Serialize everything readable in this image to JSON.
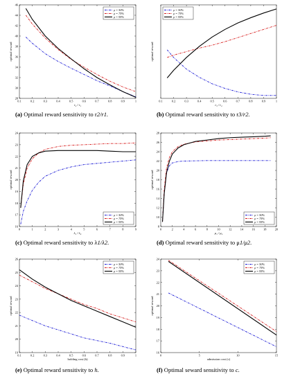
{
  "chart_data": [
    {
      "type": "line",
      "label": "(a)",
      "caption": "Optimal reward sensitivity to r",
      "caption_math": "2/r1.",
      "xlabel": "r₂ / r₁",
      "ylabel": "optimal reward",
      "xlim": [
        0.1,
        1
      ],
      "ylim": [
        28,
        46
      ],
      "xticks": [
        0.1,
        0.2,
        0.3,
        0.4,
        0.5,
        0.6,
        0.7,
        0.8,
        0.9,
        1
      ],
      "yticks": [
        28,
        30,
        32,
        34,
        36,
        38,
        40,
        42,
        44,
        46
      ],
      "xticklabels": [
        "0.1",
        "0.2",
        "0.3",
        "0.4",
        "0.5",
        "0.6",
        "0.7",
        "0.8",
        "0.9",
        "1"
      ],
      "yticklabels": [
        "28",
        "30",
        "32",
        "34",
        "36",
        "38",
        "40",
        "42",
        "44",
        "46"
      ],
      "legend_loc": "top-right",
      "x": [
        0.15,
        0.2,
        0.3,
        0.4,
        0.5,
        0.6,
        0.7,
        0.8,
        0.9,
        1.0
      ],
      "series": [
        {
          "name": "ρ = 50%",
          "color": "#1f1fd6",
          "style": "dashdot",
          "values": [
            39.8,
            38.6,
            36.6,
            35.1,
            33.8,
            32.6,
            31.4,
            30.4,
            29.3,
            28.3
          ]
        },
        {
          "name": "ρ = 75%",
          "color": "#d81f1f",
          "style": "dashdot",
          "values": [
            44.0,
            42.3,
            39.6,
            37.4,
            35.5,
            34.0,
            32.6,
            31.3,
            30.2,
            29.3
          ]
        },
        {
          "name": "ρ = 95%",
          "color": "#000000",
          "style": "solid",
          "values": [
            45.3,
            43.2,
            40.0,
            37.6,
            35.6,
            33.7,
            32.0,
            30.6,
            29.3,
            28.2
          ]
        }
      ]
    },
    {
      "type": "line",
      "label": "(b)",
      "caption": "Optimal reward sensitivity to r",
      "caption_math": "3/r2.",
      "xlabel": "r₃ / r₂",
      "ylabel": "optimal reward",
      "xlim": [
        0.1,
        1
      ],
      "ylim": [
        32,
        48
      ],
      "xticks": [
        0.1,
        0.2,
        0.3,
        0.4,
        0.5,
        0.6,
        0.7,
        0.8,
        0.9,
        1
      ],
      "yticks": [],
      "xticklabels": [
        "0.1",
        "0.2",
        "0.3",
        "0.4",
        "0.5",
        "0.6",
        "0.7",
        "0.8",
        "0.9",
        "1"
      ],
      "yticklabels": [],
      "legend_loc": "top-left",
      "x": [
        0.15,
        0.2,
        0.3,
        0.4,
        0.5,
        0.6,
        0.7,
        0.8,
        0.9,
        1.0
      ],
      "series": [
        {
          "name": "ρ = 50%",
          "color": "#1f1fd6",
          "style": "dashdot",
          "values": [
            40.3,
            39.0,
            37.0,
            35.6,
            34.5,
            33.7,
            33.1,
            32.7,
            32.5,
            32.5
          ]
        },
        {
          "name": "ρ = 75%",
          "color": "#d81f1f",
          "style": "dashdot",
          "values": [
            39.0,
            39.4,
            40.0,
            40.6,
            41.1,
            41.7,
            42.4,
            43.1,
            43.8,
            44.5
          ]
        },
        {
          "name": "ρ = 95%",
          "color": "#000000",
          "style": "solid",
          "values": [
            35.5,
            36.8,
            39.0,
            40.9,
            42.5,
            43.8,
            44.9,
            45.8,
            46.6,
            47.3
          ]
        }
      ]
    },
    {
      "type": "line",
      "label": "(c)",
      "caption": "Optimal reward sensitivity to λ",
      "caption_math": "1/λ2.",
      "xlabel": "λ₁ / λ₂",
      "ylabel": "optimal reward",
      "xlim": [
        0,
        9
      ],
      "ylim": [
        16,
        24
      ],
      "xticks": [
        0,
        1,
        2,
        3,
        4,
        5,
        6,
        7,
        8,
        9
      ],
      "yticks": [
        16,
        17,
        18,
        19,
        20,
        21,
        22,
        23,
        24
      ],
      "xticklabels": [
        "0",
        "1",
        "2",
        "3",
        "4",
        "5",
        "6",
        "7",
        "8",
        "9"
      ],
      "yticklabels": [
        "16",
        "17",
        "18",
        "19",
        "20",
        "21",
        "22",
        "23",
        "24"
      ],
      "legend_loc": "bottom-right",
      "x": [
        0.1,
        0.3,
        0.6,
        1.0,
        1.5,
        2.0,
        3.0,
        4.0,
        5.0,
        6.0,
        7.0,
        8.0,
        9.0
      ],
      "series": [
        {
          "name": "ρ = 50%",
          "color": "#1f1fd6",
          "style": "dashdot",
          "values": [
            16.2,
            17.3,
            18.2,
            19.1,
            19.8,
            20.3,
            20.8,
            21.1,
            21.3,
            21.4,
            21.5,
            21.6,
            21.7
          ]
        },
        {
          "name": "ρ = 75%",
          "color": "#d81f1f",
          "style": "dashdot",
          "values": [
            17.6,
            19.6,
            21.0,
            21.8,
            22.3,
            22.6,
            22.85,
            22.95,
            23.0,
            23.05,
            23.1,
            23.1,
            23.15
          ]
        },
        {
          "name": "ρ = 95%",
          "color": "#000000",
          "style": "solid",
          "values": [
            17.6,
            19.9,
            21.3,
            22.0,
            22.3,
            22.45,
            22.5,
            22.5,
            22.5,
            22.5,
            22.45,
            22.4,
            22.4
          ]
        }
      ]
    },
    {
      "type": "line",
      "label": "(d)",
      "caption": "Optimal reward sensitivity to μ",
      "caption_math": "1/μ2.",
      "xlabel": "μ₁ / μ₂",
      "ylabel": "optimal reward",
      "xlim": [
        0,
        20
      ],
      "ylim": [
        8,
        28
      ],
      "xticks": [
        0,
        2,
        4,
        6,
        8,
        10,
        12,
        14,
        16,
        18,
        20
      ],
      "yticks": [
        8,
        10,
        12,
        14,
        16,
        18,
        20,
        22,
        24,
        26,
        28
      ],
      "xticklabels": [
        "0",
        "2",
        "4",
        "6",
        "8",
        "10",
        "12",
        "14",
        "16",
        "18",
        "20"
      ],
      "yticklabels": [
        "8",
        "10",
        "12",
        "14",
        "16",
        "18",
        "20",
        "22",
        "24",
        "26",
        "28"
      ],
      "legend_loc": "bottom-right",
      "x": [
        0.3,
        0.6,
        1.0,
        1.5,
        2.0,
        3.0,
        4.0,
        6.0,
        8.0,
        10.0,
        12.0,
        14.0,
        16.0,
        18.0,
        19.0
      ],
      "series": [
        {
          "name": "ρ = 50%",
          "color": "#1f1fd6",
          "style": "dashdot",
          "values": [
            9.0,
            15.5,
            19.5,
            21.0,
            21.6,
            21.9,
            22.0,
            22.05,
            22.1,
            22.1,
            22.1,
            22.1,
            22.1,
            22.1,
            22.1
          ]
        },
        {
          "name": "ρ = 75%",
          "color": "#d81f1f",
          "style": "dashdot",
          "values": [
            9.0,
            16.0,
            20.5,
            22.8,
            24.0,
            25.1,
            25.6,
            26.1,
            26.3,
            26.5,
            26.6,
            26.7,
            26.8,
            26.9,
            27.0
          ]
        },
        {
          "name": "ρ = 95%",
          "color": "#000000",
          "style": "solid",
          "values": [
            9.0,
            15.0,
            19.5,
            22.0,
            23.5,
            24.8,
            25.5,
            26.2,
            26.5,
            26.8,
            27.0,
            27.1,
            27.2,
            27.3,
            27.4
          ]
        }
      ]
    },
    {
      "type": "line",
      "label": "(e)",
      "caption": "Optimal reward sensitivity to ",
      "caption_math": "h.",
      "xlabel": "holding cost (h)",
      "ylabel": "optimal reward",
      "xlim": [
        0.1,
        1
      ],
      "ylim": [
        19,
        26
      ],
      "xticks": [
        0.1,
        0.2,
        0.3,
        0.4,
        0.5,
        0.6,
        0.7,
        0.8,
        0.9,
        1
      ],
      "yticks": [
        19,
        20,
        21,
        22,
        23,
        24,
        25,
        26
      ],
      "xticklabels": [
        "0.1",
        "0.2",
        "0.3",
        "0.4",
        "0.5",
        "0.6",
        "0.7",
        "0.8",
        "0.9",
        "1"
      ],
      "yticklabels": [
        "19",
        "20",
        "21",
        "22",
        "23",
        "24",
        "25",
        "26"
      ],
      "legend_loc": "top-right",
      "x": [
        0.1,
        0.2,
        0.3,
        0.4,
        0.5,
        0.6,
        0.7,
        0.8,
        0.9,
        1.0
      ],
      "series": [
        {
          "name": "ρ = 50%",
          "color": "#1f1fd6",
          "style": "dashdot",
          "values": [
            21.8,
            21.4,
            21.0,
            20.7,
            20.4,
            20.1,
            19.9,
            19.7,
            19.45,
            19.2
          ]
        },
        {
          "name": "ρ = 75%",
          "color": "#d81f1f",
          "style": "dashdot",
          "values": [
            24.8,
            24.3,
            23.8,
            23.4,
            23.0,
            22.6,
            22.3,
            21.9,
            21.6,
            21.3
          ]
        },
        {
          "name": "ρ = 95%",
          "color": "#000000",
          "style": "solid",
          "values": [
            25.2,
            24.5,
            23.9,
            23.4,
            22.9,
            22.5,
            22.1,
            21.7,
            21.3,
            20.9
          ]
        }
      ]
    },
    {
      "type": "line",
      "label": "(f)",
      "caption": "Optimal seward sensitivity to ",
      "caption_math": "c.",
      "xlabel": "admission cost (c)",
      "ylabel": "optimal reward",
      "xlim": [
        0,
        15
      ],
      "ylim": [
        16,
        24
      ],
      "xticks": [
        0,
        5,
        10,
        15
      ],
      "yticks": [
        16,
        17,
        18,
        19,
        20,
        21,
        22,
        23,
        24
      ],
      "xticklabels": [
        "0",
        "5",
        "10",
        "15"
      ],
      "yticklabels": [
        "16",
        "17",
        "18",
        "19",
        "20",
        "21",
        "22",
        "23",
        "24"
      ],
      "legend_loc": "top-right",
      "x": [
        1,
        15
      ],
      "series": [
        {
          "name": "ρ = 50%",
          "color": "#1f1fd6",
          "style": "dashdot",
          "values": [
            21.1,
            16.5
          ]
        },
        {
          "name": "ρ = 75%",
          "color": "#d81f1f",
          "style": "dashdot",
          "values": [
            23.9,
            17.8
          ]
        },
        {
          "name": "ρ = 95%",
          "color": "#000000",
          "style": "solid",
          "values": [
            23.8,
            17.5
          ]
        }
      ]
    }
  ]
}
